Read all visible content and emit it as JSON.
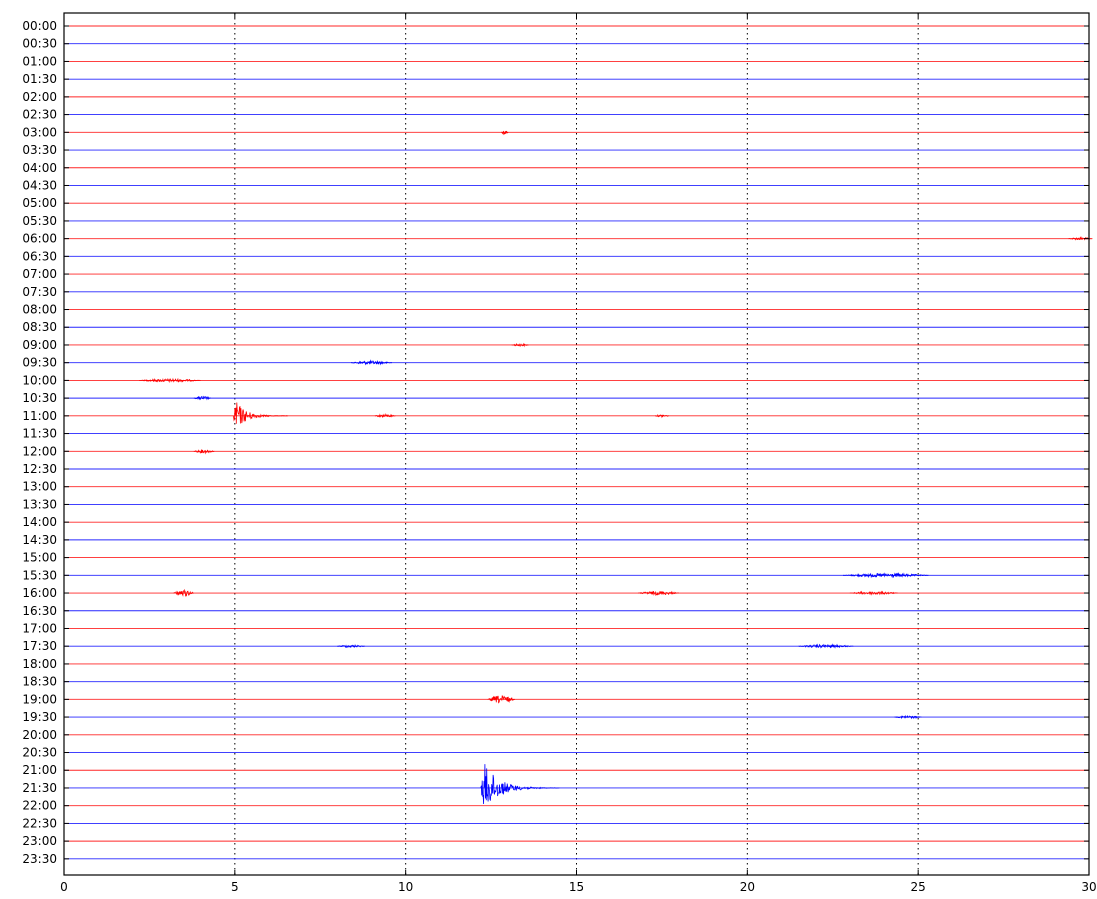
{
  "chart_data": {
    "type": "line",
    "title": "",
    "xlabel": "",
    "ylabel": "",
    "xlim": [
      0,
      30
    ],
    "x_ticks": [
      0,
      5,
      10,
      15,
      20,
      25,
      30
    ],
    "x_tick_labels": [
      "0",
      "5",
      "10",
      "15",
      "20",
      "25",
      "30"
    ],
    "grid": "vertical dotted at major x ticks",
    "legend": "none",
    "colors": {
      "red": "#ff0000",
      "blue": "#0000ff",
      "axis": "#000000",
      "grid": "#000000"
    },
    "traces": [
      {
        "label": "00:00",
        "color": "red",
        "events": []
      },
      {
        "label": "00:30",
        "color": "blue",
        "events": []
      },
      {
        "label": "01:00",
        "color": "red",
        "events": []
      },
      {
        "label": "01:30",
        "color": "blue",
        "events": []
      },
      {
        "label": "02:00",
        "color": "red",
        "events": []
      },
      {
        "label": "02:30",
        "color": "blue",
        "events": []
      },
      {
        "label": "03:00",
        "color": "red",
        "events": [
          {
            "x": 12.8,
            "amp": 0.15,
            "duration": 0.2
          }
        ]
      },
      {
        "label": "03:30",
        "color": "blue",
        "events": []
      },
      {
        "label": "04:00",
        "color": "red",
        "events": []
      },
      {
        "label": "04:30",
        "color": "blue",
        "events": []
      },
      {
        "label": "05:00",
        "color": "red",
        "events": []
      },
      {
        "label": "05:30",
        "color": "blue",
        "events": []
      },
      {
        "label": "06:00",
        "color": "red",
        "events": [
          {
            "x": 29.4,
            "amp": 0.08,
            "duration": 0.7
          }
        ]
      },
      {
        "label": "06:30",
        "color": "blue",
        "events": []
      },
      {
        "label": "07:00",
        "color": "red",
        "events": []
      },
      {
        "label": "07:30",
        "color": "blue",
        "events": []
      },
      {
        "label": "08:00",
        "color": "red",
        "events": []
      },
      {
        "label": "08:30",
        "color": "blue",
        "events": []
      },
      {
        "label": "09:00",
        "color": "red",
        "events": [
          {
            "x": 13.1,
            "amp": 0.08,
            "duration": 0.5
          }
        ]
      },
      {
        "label": "09:30",
        "color": "blue",
        "events": [
          {
            "x": 8.4,
            "amp": 0.12,
            "duration": 1.2
          }
        ]
      },
      {
        "label": "10:00",
        "color": "red",
        "events": [
          {
            "x": 2.2,
            "amp": 0.1,
            "duration": 1.8
          }
        ]
      },
      {
        "label": "10:30",
        "color": "blue",
        "events": [
          {
            "x": 3.8,
            "amp": 0.12,
            "duration": 0.5
          }
        ]
      },
      {
        "label": "11:00",
        "color": "red",
        "events": [
          {
            "x": 4.95,
            "amp": 1.0,
            "duration": 1.6
          },
          {
            "x": 9.1,
            "amp": 0.1,
            "duration": 0.6
          },
          {
            "x": 17.3,
            "amp": 0.08,
            "duration": 0.4
          }
        ]
      },
      {
        "label": "11:30",
        "color": "blue",
        "events": []
      },
      {
        "label": "12:00",
        "color": "red",
        "events": [
          {
            "x": 3.8,
            "amp": 0.12,
            "duration": 0.6
          }
        ]
      },
      {
        "label": "12:30",
        "color": "blue",
        "events": []
      },
      {
        "label": "13:00",
        "color": "red",
        "events": []
      },
      {
        "label": "13:30",
        "color": "blue",
        "events": []
      },
      {
        "label": "14:00",
        "color": "red",
        "events": []
      },
      {
        "label": "14:30",
        "color": "blue",
        "events": []
      },
      {
        "label": "15:00",
        "color": "red",
        "events": []
      },
      {
        "label": "15:30",
        "color": "blue",
        "events": [
          {
            "x": 22.8,
            "amp": 0.12,
            "duration": 2.5
          }
        ]
      },
      {
        "label": "16:00",
        "color": "red",
        "events": [
          {
            "x": 3.2,
            "amp": 0.2,
            "duration": 0.6
          },
          {
            "x": 16.8,
            "amp": 0.12,
            "duration": 1.2
          },
          {
            "x": 23.0,
            "amp": 0.1,
            "duration": 1.4
          }
        ]
      },
      {
        "label": "16:30",
        "color": "blue",
        "events": []
      },
      {
        "label": "17:00",
        "color": "red",
        "events": []
      },
      {
        "label": "17:30",
        "color": "blue",
        "events": [
          {
            "x": 8.0,
            "amp": 0.08,
            "duration": 0.8
          },
          {
            "x": 21.5,
            "amp": 0.1,
            "duration": 1.6
          }
        ]
      },
      {
        "label": "18:00",
        "color": "red",
        "events": []
      },
      {
        "label": "18:30",
        "color": "blue",
        "events": []
      },
      {
        "label": "19:00",
        "color": "red",
        "events": [
          {
            "x": 12.4,
            "amp": 0.25,
            "duration": 0.8
          }
        ]
      },
      {
        "label": "19:30",
        "color": "blue",
        "events": [
          {
            "x": 24.3,
            "amp": 0.08,
            "duration": 0.8
          }
        ]
      },
      {
        "label": "20:00",
        "color": "red",
        "events": []
      },
      {
        "label": "20:30",
        "color": "blue",
        "events": []
      },
      {
        "label": "21:00",
        "color": "red",
        "events": []
      },
      {
        "label": "21:30",
        "color": "blue",
        "events": [
          {
            "x": 12.2,
            "amp": 1.6,
            "duration": 2.3
          }
        ]
      },
      {
        "label": "22:00",
        "color": "red",
        "events": []
      },
      {
        "label": "22:30",
        "color": "blue",
        "events": []
      },
      {
        "label": "23:00",
        "color": "red",
        "events": []
      },
      {
        "label": "23:30",
        "color": "blue",
        "events": []
      }
    ]
  }
}
